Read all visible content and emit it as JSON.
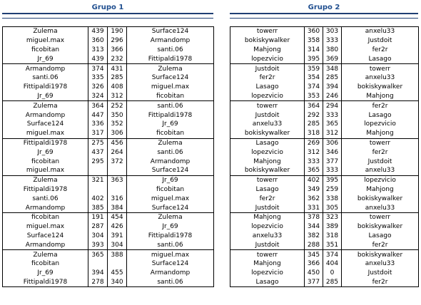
{
  "groups": [
    {
      "title": "Grupo 1",
      "rounds": [
        [
          [
            "Zulema",
            "439",
            "190",
            "Surface124"
          ],
          [
            "miguel.max",
            "360",
            "296",
            "Armandomp"
          ],
          [
            "ficobitan",
            "313",
            "366",
            "santi.06"
          ],
          [
            "Jr_69",
            "439",
            "232",
            "Fittipaldi1978"
          ]
        ],
        [
          [
            "Armandomp",
            "374",
            "431",
            "Zulema"
          ],
          [
            "santi.06",
            "335",
            "285",
            "Surface124"
          ],
          [
            "Fittipaldi1978",
            "326",
            "408",
            "miguel.max"
          ],
          [
            "Jr_69",
            "324",
            "312",
            "ficobitan"
          ]
        ],
        [
          [
            "Zulema",
            "364",
            "252",
            "santi.06"
          ],
          [
            "Armandomp",
            "447",
            "350",
            "Fittipaldi1978"
          ],
          [
            "Surface124",
            "336",
            "352",
            "Jr_69"
          ],
          [
            "miguel.max",
            "317",
            "306",
            "ficobitan"
          ]
        ],
        [
          [
            "Fittipaldi1978",
            "275",
            "456",
            "Zulema"
          ],
          [
            "Jr_69",
            "437",
            "264",
            "santi.06"
          ],
          [
            "ficobitan",
            "295",
            "372",
            "Armandomp"
          ],
          [
            "miguel.max",
            "",
            "",
            "Surface124"
          ]
        ],
        [
          [
            "Zulema",
            "321",
            "363",
            "Jr_69"
          ],
          [
            "Fittipaldi1978",
            "",
            "",
            "ficobitan"
          ],
          [
            "santi.06",
            "402",
            "316",
            "miguel.max"
          ],
          [
            "Armandomp",
            "385",
            "384",
            "Surface124"
          ]
        ],
        [
          [
            "ficobitan",
            "191",
            "454",
            "Zulema"
          ],
          [
            "miguel.max",
            "287",
            "426",
            "Jr_69"
          ],
          [
            "Surface124",
            "304",
            "391",
            "Fittipaldi1978"
          ],
          [
            "Armandomp",
            "393",
            "304",
            "santi.06"
          ]
        ],
        [
          [
            "Zulema",
            "365",
            "388",
            "miguel.max"
          ],
          [
            "ficobitan",
            "",
            "",
            "Surface124"
          ],
          [
            "Jr_69",
            "394",
            "455",
            "Armandomp"
          ],
          [
            "Fittipaldi1978",
            "278",
            "340",
            "santi.06"
          ]
        ]
      ]
    },
    {
      "title": "Grupo 2",
      "rounds": [
        [
          [
            "towerr",
            "360",
            "303",
            "anxelu33"
          ],
          [
            "bokiskywalker",
            "358",
            "333",
            "Justdoit"
          ],
          [
            "Mahjong",
            "314",
            "380",
            "fer2r"
          ],
          [
            "lopezvicio",
            "395",
            "369",
            "Lasago"
          ]
        ],
        [
          [
            "Justdoit",
            "359",
            "348",
            "towerr"
          ],
          [
            "fer2r",
            "354",
            "285",
            "anxelu33"
          ],
          [
            "Lasago",
            "374",
            "394",
            "bokiskywalker"
          ],
          [
            "lopezvicio",
            "353",
            "246",
            "Mahjong"
          ]
        ],
        [
          [
            "towerr",
            "364",
            "294",
            "fer2r"
          ],
          [
            "Justdoit",
            "292",
            "333",
            "Lasago"
          ],
          [
            "anxelu33",
            "285",
            "365",
            "lopezvicio"
          ],
          [
            "bokiskywalker",
            "318",
            "312",
            "Mahjong"
          ]
        ],
        [
          [
            "Lasago",
            "269",
            "306",
            "towerr"
          ],
          [
            "lopezvicio",
            "312",
            "346",
            "fer2r"
          ],
          [
            "Mahjong",
            "333",
            "377",
            "Justdoit"
          ],
          [
            "bokiskywalker",
            "365",
            "333",
            "anxelu33"
          ]
        ],
        [
          [
            "towerr",
            "402",
            "395",
            "lopezvicio"
          ],
          [
            "Lasago",
            "349",
            "259",
            "Mahjong"
          ],
          [
            "fer2r",
            "362",
            "338",
            "bokiskywalker"
          ],
          [
            "Justdoit",
            "331",
            "305",
            "anxelu33"
          ]
        ],
        [
          [
            "Mahjong",
            "378",
            "323",
            "towerr"
          ],
          [
            "lopezvicio",
            "344",
            "389",
            "bokiskywalker"
          ],
          [
            "anxelu33",
            "382",
            "318",
            "Lasago"
          ],
          [
            "Justdoit",
            "288",
            "351",
            "fer2r"
          ]
        ],
        [
          [
            "towerr",
            "345",
            "374",
            "bokiskywalker"
          ],
          [
            "Mahjong",
            "366",
            "404",
            "anxelu33"
          ],
          [
            "lopezvicio",
            "450",
            "0",
            "Justdoit"
          ],
          [
            "Lasago",
            "377",
            "285",
            "fer2r"
          ]
        ]
      ]
    }
  ]
}
